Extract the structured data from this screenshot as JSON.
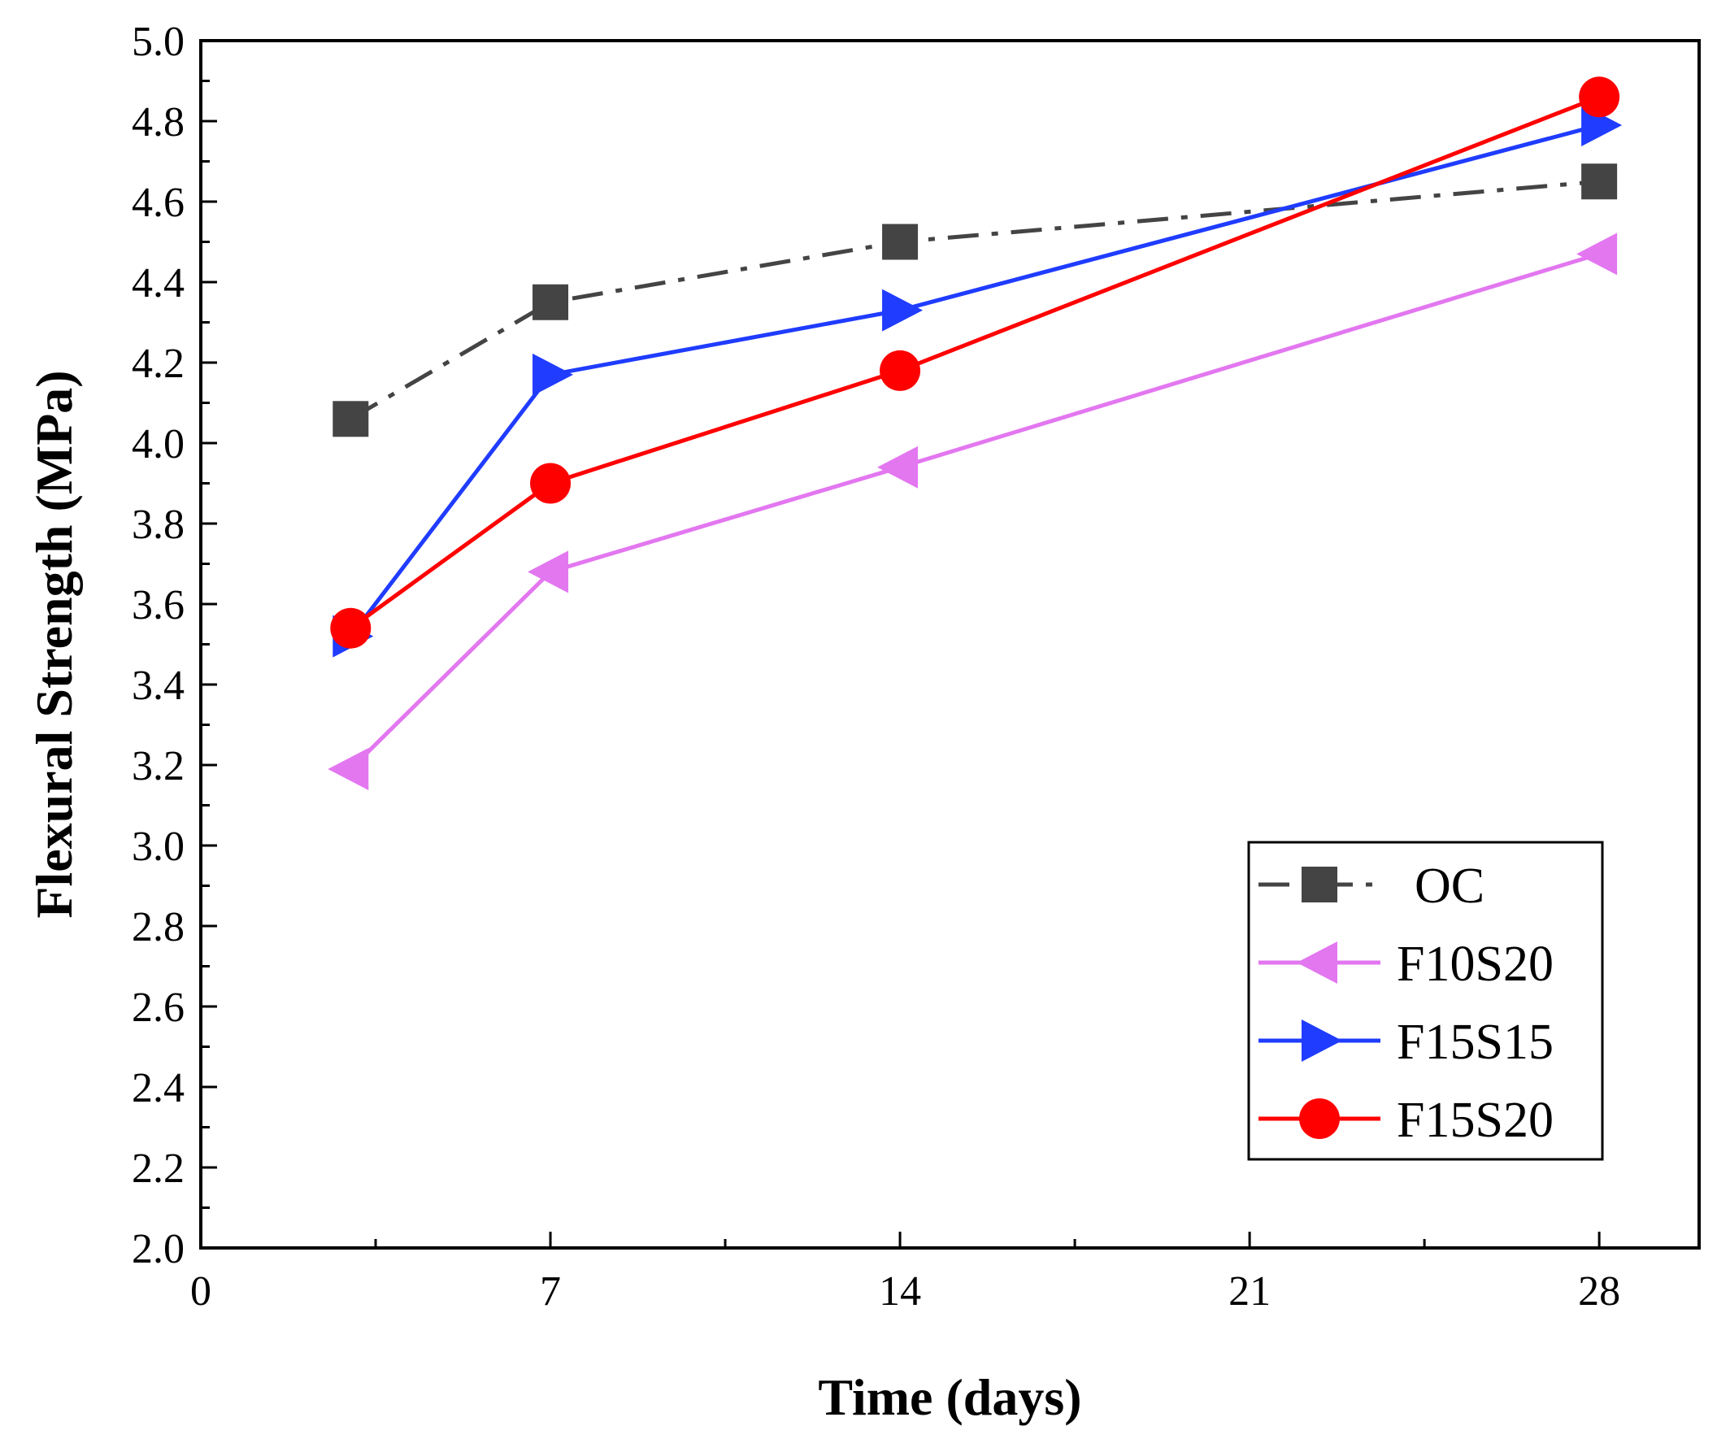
{
  "chart_data": {
    "type": "line",
    "xlabel": "Time (days)",
    "ylabel": "Flexural Strength (MPa)",
    "xlim": [
      0,
      30
    ],
    "ylim": [
      2.0,
      5.0
    ],
    "x_ticks": [
      0,
      7,
      14,
      21,
      28
    ],
    "x_tick_labels": [
      "0",
      "7",
      "14",
      "21",
      "28"
    ],
    "y_ticks": [
      2.0,
      2.2,
      2.4,
      2.6,
      2.8,
      3.0,
      3.2,
      3.4,
      3.6,
      3.8,
      4.0,
      4.2,
      4.4,
      4.6,
      4.8,
      5.0
    ],
    "y_tick_labels": [
      "2.0",
      "2.2",
      "2.4",
      "2.6",
      "2.8",
      "3.0",
      "3.2",
      "3.4",
      "3.6",
      "3.8",
      "4.0",
      "4.2",
      "4.4",
      "4.6",
      "4.8",
      "5.0"
    ],
    "grid": false,
    "legend_position": "bottom-right",
    "series": [
      {
        "name": "OC",
        "color": "#444444",
        "marker": "square",
        "dash": "dashdot",
        "x": [
          3,
          7,
          14,
          28
        ],
        "y": [
          4.06,
          4.35,
          4.5,
          4.65
        ]
      },
      {
        "name": "F10S20",
        "color": "#e377f0",
        "marker": "triangle-left",
        "dash": "solid",
        "x": [
          3,
          7,
          14,
          28
        ],
        "y": [
          3.19,
          3.68,
          3.94,
          4.47
        ]
      },
      {
        "name": "F15S15",
        "color": "#1f3cff",
        "marker": "triangle-right",
        "dash": "solid",
        "x": [
          3,
          7,
          14,
          28
        ],
        "y": [
          3.52,
          4.17,
          4.33,
          4.79
        ]
      },
      {
        "name": "F15S20",
        "color": "#ff0000",
        "marker": "circle",
        "dash": "solid",
        "x": [
          3,
          7,
          14,
          28
        ],
        "y": [
          3.54,
          3.9,
          4.18,
          4.86
        ]
      }
    ]
  }
}
